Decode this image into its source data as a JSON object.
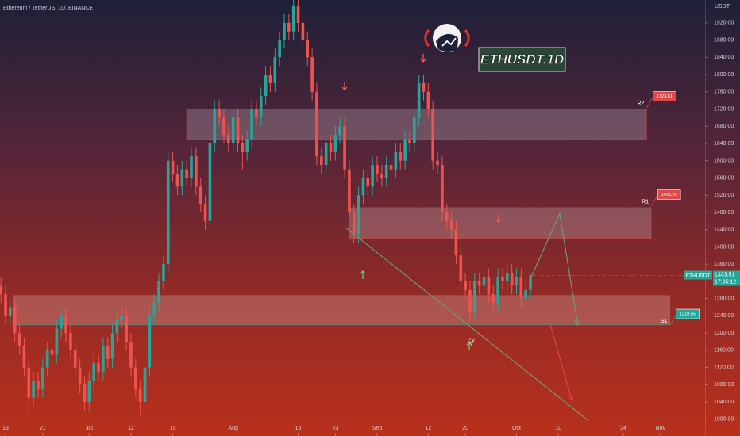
{
  "chart_data": {
    "type": "candlestick",
    "title": "Ethereum / TetherUS, 1D, BINANCE",
    "badge": "ETHUSDT.1D",
    "y_axis_unit": "USDT",
    "symbol_tag": "ETHUSDT",
    "countdown": "17:35:12",
    "xlim": [
      -1.2,
      150.6
    ],
    "ylim": [
      961,
      1973
    ],
    "xticks": [
      {
        "value": 0,
        "label": "13"
      },
      {
        "value": 8,
        "label": "21"
      },
      {
        "value": 18,
        "label": "Jul"
      },
      {
        "value": 27,
        "label": "12"
      },
      {
        "value": 36,
        "label": "19"
      },
      {
        "value": 49,
        "label": "Aug"
      },
      {
        "value": 63,
        "label": "15"
      },
      {
        "value": 71,
        "label": "23"
      },
      {
        "value": 80,
        "label": "Sep"
      },
      {
        "value": 91,
        "label": "12"
      },
      {
        "value": 99,
        "label": "20"
      },
      {
        "value": 110,
        "label": "Oct"
      },
      {
        "value": 119,
        "label": "10"
      },
      {
        "value": 133,
        "label": "24"
      },
      {
        "value": 141,
        "label": "Nov"
      }
    ],
    "yticks": [
      {
        "value": 1000,
        "label": "1000.00"
      },
      {
        "value": 1040,
        "label": "1040.00"
      },
      {
        "value": 1080,
        "label": "1080.00"
      },
      {
        "value": 1120,
        "label": "1120.00"
      },
      {
        "value": 1160,
        "label": "1160.00"
      },
      {
        "value": 1200,
        "label": "1200.00"
      },
      {
        "value": 1240,
        "label": "1240.00"
      },
      {
        "value": 1280,
        "label": "1280.00"
      },
      {
        "value": 1320,
        "label": "1320.00"
      },
      {
        "value": 1360,
        "label": "1360.00"
      },
      {
        "value": 1400,
        "label": "1400.00"
      },
      {
        "value": 1440,
        "label": "1440.00"
      },
      {
        "value": 1480,
        "label": "1480.00"
      },
      {
        "value": 1520,
        "label": "1520.00"
      },
      {
        "value": 1560,
        "label": "1560.00"
      },
      {
        "value": 1600,
        "label": "1600.00"
      },
      {
        "value": 1640,
        "label": "1640.00"
      },
      {
        "value": 1680,
        "label": "1680.00"
      },
      {
        "value": 1720,
        "label": "1720.00"
      },
      {
        "value": 1760,
        "label": "1760.00"
      },
      {
        "value": 1800,
        "label": "1800.00"
      },
      {
        "value": 1840,
        "label": "1840.00"
      },
      {
        "value": 1880,
        "label": "1880.00"
      },
      {
        "value": 1920,
        "label": "1920.00"
      }
    ],
    "up_color": "#26a69a",
    "down_color": "#ef5350",
    "series": [
      {
        "name": "ETHUSDT",
        "x": [
          -1,
          0,
          1,
          2,
          3,
          4,
          5,
          6,
          7,
          8,
          9,
          10,
          11,
          12,
          13,
          14,
          15,
          16,
          17,
          18,
          19,
          20,
          21,
          22,
          23,
          24,
          25,
          26,
          27,
          28,
          29,
          30,
          31,
          32,
          33,
          34,
          35,
          36,
          37,
          38,
          39,
          40,
          41,
          42,
          43,
          44,
          45,
          46,
          47,
          48,
          49,
          50,
          51,
          52,
          53,
          54,
          55,
          56,
          57,
          58,
          59,
          60,
          61,
          62,
          63,
          64,
          65,
          66,
          67,
          68,
          69,
          70,
          71,
          72,
          73,
          74,
          75,
          76,
          77,
          78,
          79,
          80,
          81,
          82,
          83,
          84,
          85,
          86,
          87,
          88,
          89,
          90,
          91,
          92,
          93,
          94,
          95,
          96,
          97,
          98,
          99,
          100,
          101,
          102,
          103,
          104,
          105,
          106,
          107,
          108,
          109,
          110,
          111,
          112,
          113
        ],
        "ohlc": [
          [
            1310,
            1330,
            1270,
            1290
          ],
          [
            1290,
            1310,
            1220,
            1240
          ],
          [
            1240,
            1280,
            1220,
            1260
          ],
          [
            1260,
            1280,
            1180,
            1200
          ],
          [
            1200,
            1220,
            1150,
            1170
          ],
          [
            1170,
            1190,
            1100,
            1120
          ],
          [
            1120,
            1140,
            1000,
            1050
          ],
          [
            1050,
            1110,
            1030,
            1090
          ],
          [
            1090,
            1110,
            1050,
            1070
          ],
          [
            1070,
            1140,
            1050,
            1120
          ],
          [
            1120,
            1180,
            1100,
            1160
          ],
          [
            1160,
            1180,
            1130,
            1150
          ],
          [
            1150,
            1230,
            1130,
            1210
          ],
          [
            1210,
            1260,
            1190,
            1240
          ],
          [
            1240,
            1260,
            1180,
            1200
          ],
          [
            1200,
            1220,
            1140,
            1160
          ],
          [
            1160,
            1180,
            1100,
            1120
          ],
          [
            1120,
            1140,
            1060,
            1080
          ],
          [
            1080,
            1100,
            1020,
            1040
          ],
          [
            1040,
            1110,
            1020,
            1090
          ],
          [
            1090,
            1150,
            1070,
            1130
          ],
          [
            1130,
            1150,
            1090,
            1110
          ],
          [
            1110,
            1190,
            1090,
            1170
          ],
          [
            1170,
            1190,
            1120,
            1140
          ],
          [
            1140,
            1220,
            1120,
            1200
          ],
          [
            1200,
            1250,
            1180,
            1230
          ],
          [
            1230,
            1260,
            1210,
            1240
          ],
          [
            1240,
            1260,
            1160,
            1180
          ],
          [
            1180,
            1200,
            1100,
            1120
          ],
          [
            1120,
            1140,
            1050,
            1070
          ],
          [
            1070,
            1090,
            1010,
            1040
          ],
          [
            1040,
            1140,
            1020,
            1120
          ],
          [
            1120,
            1260,
            1100,
            1240
          ],
          [
            1240,
            1290,
            1220,
            1270
          ],
          [
            1270,
            1340,
            1250,
            1320
          ],
          [
            1320,
            1380,
            1300,
            1360
          ],
          [
            1360,
            1620,
            1340,
            1600
          ],
          [
            1600,
            1620,
            1550,
            1570
          ],
          [
            1570,
            1590,
            1520,
            1540
          ],
          [
            1540,
            1600,
            1520,
            1580
          ],
          [
            1580,
            1600,
            1540,
            1560
          ],
          [
            1560,
            1630,
            1540,
            1610
          ],
          [
            1610,
            1630,
            1520,
            1540
          ],
          [
            1540,
            1560,
            1480,
            1500
          ],
          [
            1500,
            1520,
            1440,
            1460
          ],
          [
            1460,
            1660,
            1440,
            1640
          ],
          [
            1640,
            1740,
            1620,
            1720
          ],
          [
            1720,
            1740,
            1680,
            1700
          ],
          [
            1700,
            1720,
            1640,
            1660
          ],
          [
            1660,
            1680,
            1620,
            1640
          ],
          [
            1640,
            1720,
            1620,
            1700
          ],
          [
            1700,
            1720,
            1620,
            1640
          ],
          [
            1640,
            1660,
            1580,
            1620
          ],
          [
            1620,
            1670,
            1600,
            1650
          ],
          [
            1650,
            1740,
            1630,
            1720
          ],
          [
            1720,
            1740,
            1680,
            1700
          ],
          [
            1700,
            1770,
            1680,
            1750
          ],
          [
            1750,
            1820,
            1730,
            1800
          ],
          [
            1800,
            1820,
            1760,
            1780
          ],
          [
            1780,
            1860,
            1760,
            1840
          ],
          [
            1840,
            1900,
            1820,
            1880
          ],
          [
            1880,
            1940,
            1860,
            1920
          ],
          [
            1920,
            1940,
            1880,
            1900
          ],
          [
            1900,
            1975,
            1880,
            1960
          ],
          [
            1960,
            1975,
            1900,
            1920
          ],
          [
            1920,
            1940,
            1860,
            1880
          ],
          [
            1880,
            1900,
            1820,
            1840
          ],
          [
            1840,
            1860,
            1740,
            1760
          ],
          [
            1760,
            1780,
            1590,
            1610
          ],
          [
            1610,
            1630,
            1570,
            1590
          ],
          [
            1590,
            1660,
            1570,
            1640
          ],
          [
            1640,
            1660,
            1600,
            1620
          ],
          [
            1620,
            1680,
            1600,
            1660
          ],
          [
            1660,
            1700,
            1640,
            1680
          ],
          [
            1680,
            1700,
            1560,
            1580
          ],
          [
            1580,
            1600,
            1460,
            1480
          ],
          [
            1480,
            1500,
            1410,
            1430
          ],
          [
            1430,
            1540,
            1410,
            1520
          ],
          [
            1520,
            1580,
            1500,
            1560
          ],
          [
            1560,
            1580,
            1520,
            1540
          ],
          [
            1540,
            1610,
            1520,
            1590
          ],
          [
            1590,
            1610,
            1550,
            1570
          ],
          [
            1570,
            1590,
            1540,
            1560
          ],
          [
            1560,
            1610,
            1540,
            1590
          ],
          [
            1590,
            1610,
            1560,
            1580
          ],
          [
            1580,
            1640,
            1560,
            1620
          ],
          [
            1620,
            1640,
            1580,
            1600
          ],
          [
            1600,
            1670,
            1580,
            1650
          ],
          [
            1650,
            1670,
            1620,
            1640
          ],
          [
            1640,
            1720,
            1620,
            1700
          ],
          [
            1700,
            1800,
            1680,
            1780
          ],
          [
            1780,
            1800,
            1740,
            1760
          ],
          [
            1760,
            1780,
            1700,
            1720
          ],
          [
            1720,
            1740,
            1580,
            1600
          ],
          [
            1600,
            1620,
            1570,
            1590
          ],
          [
            1590,
            1610,
            1460,
            1480
          ],
          [
            1480,
            1500,
            1440,
            1460
          ],
          [
            1460,
            1480,
            1420,
            1440
          ],
          [
            1440,
            1460,
            1360,
            1380
          ],
          [
            1380,
            1400,
            1300,
            1320
          ],
          [
            1320,
            1340,
            1280,
            1300
          ],
          [
            1300,
            1320,
            1230,
            1250
          ],
          [
            1250,
            1340,
            1230,
            1320
          ],
          [
            1320,
            1340,
            1290,
            1310
          ],
          [
            1310,
            1350,
            1290,
            1330
          ],
          [
            1330,
            1350,
            1270,
            1290
          ],
          [
            1290,
            1310,
            1250,
            1270
          ],
          [
            1270,
            1350,
            1250,
            1330
          ],
          [
            1330,
            1350,
            1300,
            1320
          ],
          [
            1320,
            1360,
            1300,
            1340
          ],
          [
            1340,
            1360,
            1290,
            1310
          ],
          [
            1310,
            1350,
            1290,
            1330
          ],
          [
            1330,
            1350,
            1260,
            1280
          ],
          [
            1280,
            1320,
            1260,
            1300
          ],
          [
            1300,
            1340,
            1280,
            1333.51
          ]
        ]
      }
    ],
    "zones": [
      {
        "label": "R2",
        "from": 39,
        "to": 138,
        "low": 1650,
        "high": 1720,
        "tag": 1723.61,
        "color": "#e04848"
      },
      {
        "label": "R1",
        "from": 74,
        "to": 139,
        "low": 1420,
        "high": 1491,
        "tag": 1495.26,
        "color": "#e04848"
      },
      {
        "label": "S1",
        "from": 1.7,
        "to": 143,
        "low": 1219,
        "high": 1287,
        "tag": 1218.55,
        "color": "#26a69a"
      }
    ],
    "drawings": [
      {
        "color": "#6f9c6c",
        "arrow": false,
        "points": [
          [
            73.2,
            1445
          ],
          [
            125.3,
            998
          ]
        ]
      },
      {
        "color": "#6f9c6c",
        "arrow": true,
        "points": [
          [
            113,
            1326
          ],
          [
            119.3,
            1477
          ],
          [
            123.2,
            1219
          ]
        ]
      },
      {
        "color": "#e0404a",
        "arrow": true,
        "points": [
          [
            117.3,
            1219
          ],
          [
            121.9,
            1044
          ]
        ]
      }
    ],
    "annotations": [
      {
        "text": "X2",
        "x": 100.3,
        "y": 1180
      }
    ]
  }
}
